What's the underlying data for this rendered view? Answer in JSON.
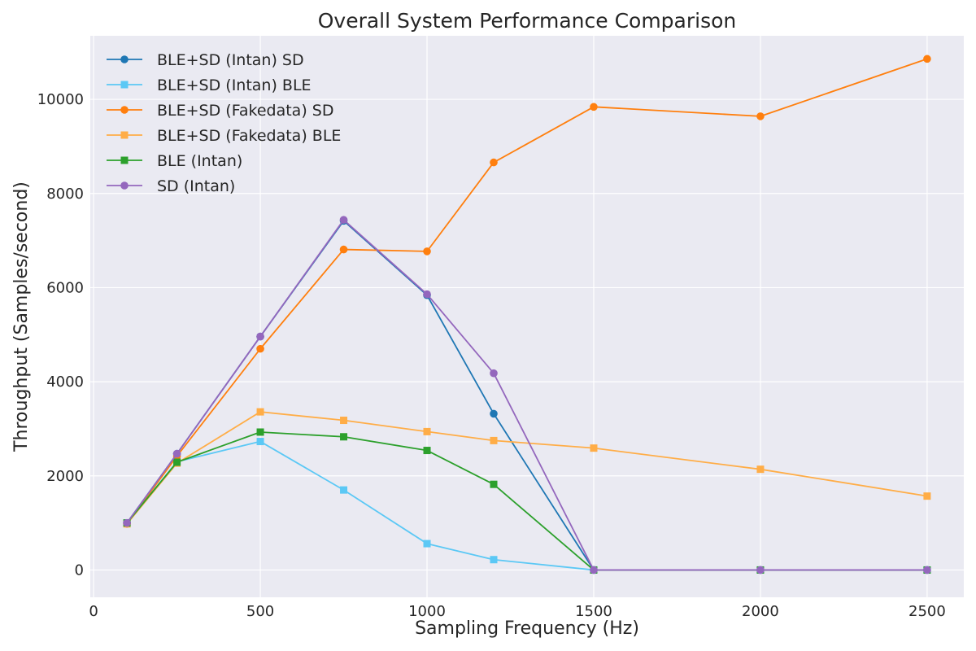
{
  "chart_data": {
    "type": "line",
    "title": "Overall System Performance Comparison",
    "xlabel": "Sampling Frequency (Hz)",
    "ylabel": "Throughput (Samples/second)",
    "xlim": [
      -10,
      2610
    ],
    "ylim": [
      -580,
      11350
    ],
    "xticks": [
      0,
      500,
      1000,
      1500,
      2000,
      2500
    ],
    "yticks": [
      0,
      2000,
      4000,
      6000,
      8000,
      10000
    ],
    "grid": true,
    "legend_position": "top-left",
    "x": [
      100,
      250,
      500,
      750,
      1000,
      1200,
      1500,
      2000,
      2500
    ],
    "series": [
      {
        "name": "BLE+SD (Intan) SD",
        "color": "#1f77b4",
        "marker": "circle",
        "values": [
          1000,
          2470,
          4960,
          7420,
          5840,
          3320,
          0,
          0,
          0
        ]
      },
      {
        "name": "BLE+SD (Intan) BLE",
        "color": "#5bc8f5",
        "marker": "square",
        "values": [
          1000,
          2300,
          2730,
          1700,
          560,
          220,
          0,
          0,
          0
        ]
      },
      {
        "name": "BLE+SD (Fakedata) SD",
        "color": "#ff7f0e",
        "marker": "circle",
        "values": [
          980,
          2420,
          4700,
          6810,
          6770,
          8660,
          9840,
          9640,
          10860
        ]
      },
      {
        "name": "BLE+SD (Fakedata) BLE",
        "color": "#ffad47",
        "marker": "square",
        "values": [
          980,
          2270,
          3360,
          3180,
          2940,
          2750,
          2590,
          2140,
          1570
        ]
      },
      {
        "name": "BLE (Intan)",
        "color": "#2ca02c",
        "marker": "square",
        "values": [
          1000,
          2290,
          2930,
          2830,
          2540,
          1820,
          0,
          0,
          0
        ]
      },
      {
        "name": "SD (Intan)",
        "color": "#9467bd",
        "marker": "circle",
        "values": [
          1000,
          2470,
          4960,
          7440,
          5860,
          4180,
          0,
          0,
          0
        ]
      }
    ]
  }
}
